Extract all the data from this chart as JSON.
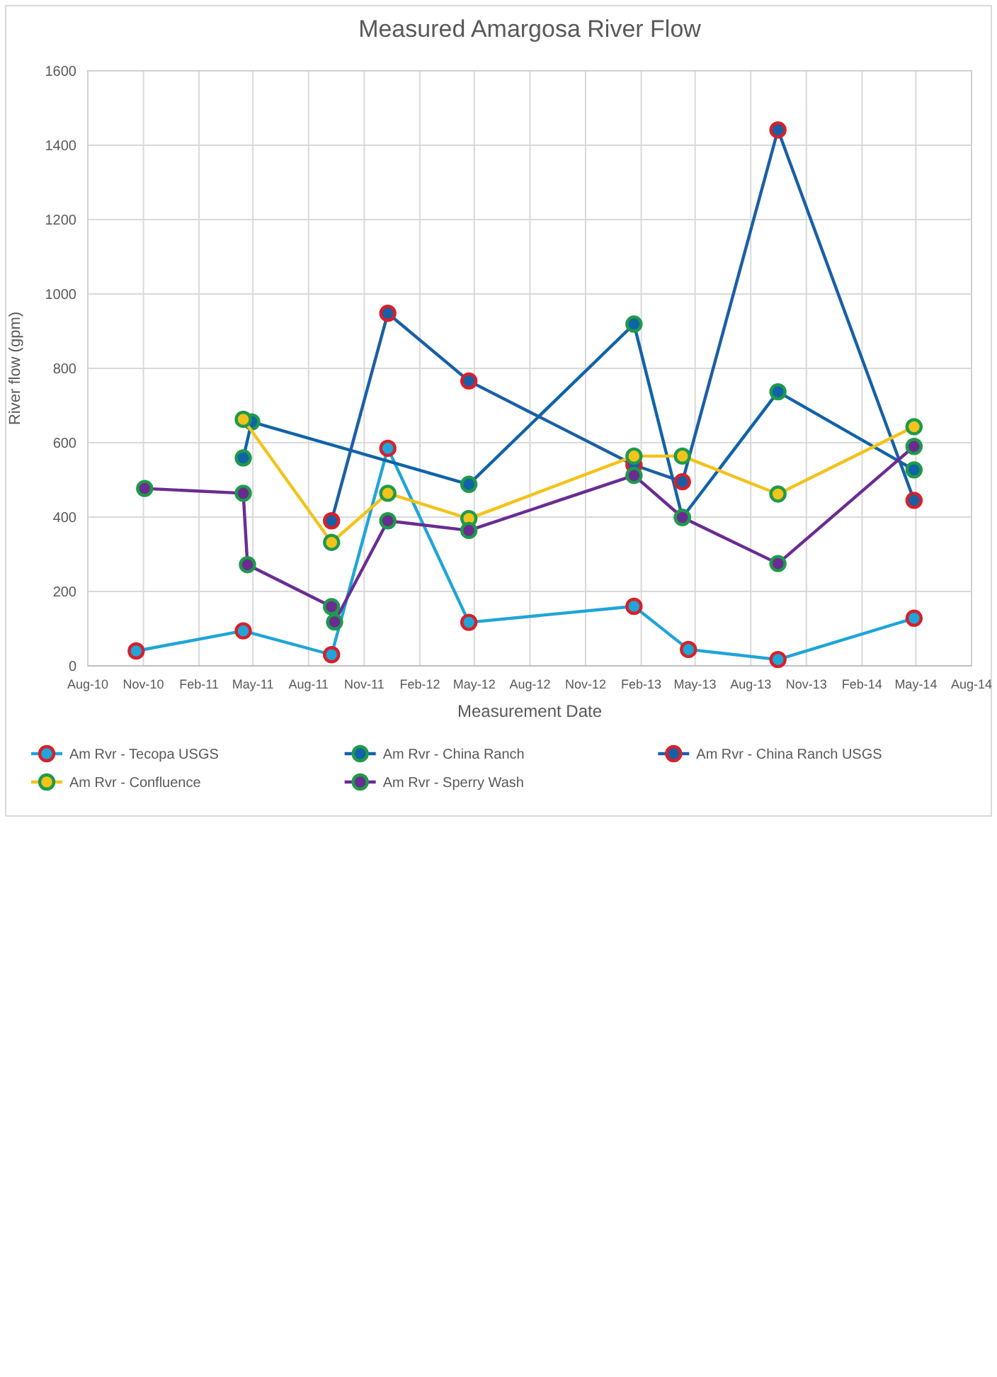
{
  "chart_data": {
    "type": "line",
    "title": "Measured Amargosa River Flow",
    "xlabel": "Measurement Date",
    "ylabel": "River flow (gpm)",
    "xlim": [
      "2010-08-01",
      "2014-08-01"
    ],
    "xticks": [
      {
        "value": "2010-08-01",
        "label": "Aug-10"
      },
      {
        "value": "2010-11-01",
        "label": "Nov-10"
      },
      {
        "value": "2011-02-01",
        "label": "Feb-11"
      },
      {
        "value": "2011-05-01",
        "label": "May-11"
      },
      {
        "value": "2011-08-01",
        "label": "Aug-11"
      },
      {
        "value": "2011-11-01",
        "label": "Nov-11"
      },
      {
        "value": "2012-02-01",
        "label": "Feb-12"
      },
      {
        "value": "2012-05-01",
        "label": "May-12"
      },
      {
        "value": "2012-08-01",
        "label": "Aug-12"
      },
      {
        "value": "2012-11-01",
        "label": "Nov-12"
      },
      {
        "value": "2013-02-01",
        "label": "Feb-13"
      },
      {
        "value": "2013-05-01",
        "label": "May-13"
      },
      {
        "value": "2013-08-01",
        "label": "Aug-13"
      },
      {
        "value": "2013-11-01",
        "label": "Nov-13"
      },
      {
        "value": "2014-02-01",
        "label": "Feb-14"
      },
      {
        "value": "2014-05-01",
        "label": "May-14"
      },
      {
        "value": "2014-08-01",
        "label": "Aug-14"
      }
    ],
    "ylim": [
      0,
      1600
    ],
    "yticks": [
      0,
      200,
      400,
      600,
      800,
      1000,
      1200,
      1400,
      1600
    ],
    "grid": true,
    "legend": "bottom",
    "marker": "circle",
    "line_style": "solid",
    "series": [
      {
        "name": "Am Rvr - Tecopa USGS",
        "color": "#1fa5d8",
        "x": [
          "2010-10-20",
          "2011-04-15",
          "2011-09-08",
          "2011-12-10",
          "2012-04-22",
          "2013-01-20",
          "2013-04-20",
          "2013-09-15",
          "2014-04-28"
        ],
        "values": [
          40,
          94,
          30,
          585,
          117,
          160,
          44,
          17,
          128
        ]
      },
      {
        "name": "Am Rvr - China Ranch",
        "color": "#1063a8",
        "x": [
          "2011-04-15",
          "2011-04-29",
          "2012-04-22",
          "2013-01-20",
          "2013-04-10",
          "2013-09-15",
          "2014-04-28"
        ],
        "values": [
          559,
          656,
          488,
          919,
          399,
          737,
          527
        ]
      },
      {
        "name": "Am Rvr - China Ranch USGS",
        "color": "#1a5fa6",
        "x": [
          "2011-09-08",
          "2011-12-10",
          "2012-04-22",
          "2013-01-20",
          "2013-04-10",
          "2013-09-15",
          "2014-04-28"
        ],
        "values": [
          390,
          948,
          766,
          540,
          495,
          1441,
          445
        ]
      },
      {
        "name": "Am Rvr - Confluence",
        "color": "#f2c31b",
        "x": [
          "2011-04-15",
          "2011-09-08",
          "2011-12-10",
          "2012-04-22",
          "2013-01-20",
          "2013-04-10",
          "2013-09-15",
          "2014-04-28"
        ],
        "values": [
          663,
          332,
          464,
          396,
          564,
          564,
          462,
          643
        ]
      },
      {
        "name": "Am Rvr - Sperry Wash",
        "color": "#6a2c91",
        "x": [
          "2010-11-03",
          "2011-04-15",
          "2011-04-22",
          "2011-09-08",
          "2011-09-13",
          "2011-12-10",
          "2012-04-22",
          "2013-01-20",
          "2013-04-10",
          "2013-09-15",
          "2014-04-28"
        ],
        "values": [
          477,
          464,
          272,
          159,
          118,
          390,
          364,
          512,
          399,
          275,
          590
        ]
      }
    ]
  }
}
